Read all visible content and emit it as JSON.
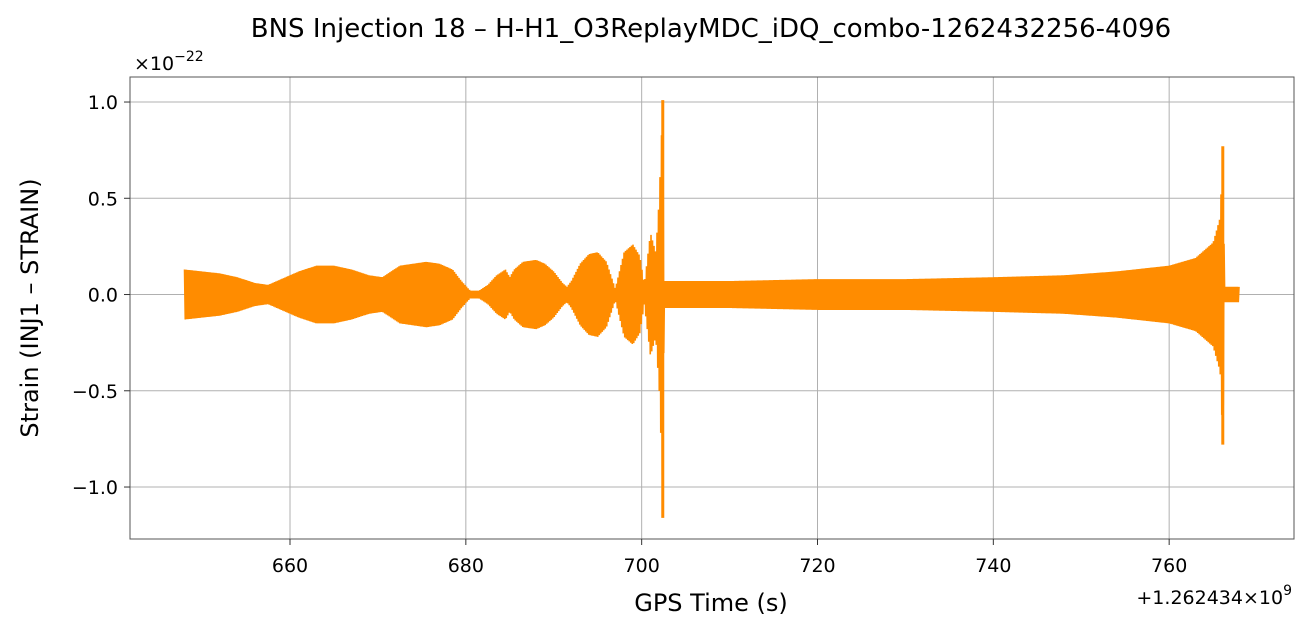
{
  "chart_data": {
    "type": "line",
    "title": "BNS Injection 18 – H-H1_O3ReplayMDC_iDQ_combo-1262432256-4096",
    "xlabel": "GPS Time (s)",
    "ylabel": "Strain (INJ1 – STRAIN)",
    "x_offset_label": "+1.262434×10",
    "x_offset_exponent": "9",
    "y_scale_label": "×10",
    "y_scale_exponent": "−22",
    "xlim": [
      641.8,
      774.2
    ],
    "ylim": [
      -1.27,
      1.13
    ],
    "x_ticks": [
      660,
      680,
      700,
      720,
      740,
      760
    ],
    "x_tick_labels": [
      "660",
      "680",
      "700",
      "720",
      "740",
      "760"
    ],
    "y_ticks": [
      -1.0,
      -0.5,
      0.0,
      0.5,
      1.0
    ],
    "y_tick_labels": [
      "−1.0",
      "−0.5",
      "0.0",
      "0.5",
      "1.0"
    ],
    "grid": true,
    "color": "#ff8c00",
    "series": [
      {
        "envelope": [
          [
            648.0,
            0.13
          ],
          [
            650.0,
            0.12
          ],
          [
            652.0,
            0.11
          ],
          [
            654.0,
            0.09
          ],
          [
            656.0,
            0.06
          ],
          [
            657.5,
            0.05
          ],
          [
            659.0,
            0.08
          ],
          [
            661.0,
            0.12
          ],
          [
            663.0,
            0.15
          ],
          [
            665.0,
            0.15
          ],
          [
            667.0,
            0.13
          ],
          [
            669.0,
            0.1
          ],
          [
            670.5,
            0.09
          ],
          [
            671.5,
            0.12
          ],
          [
            672.5,
            0.15
          ],
          [
            674.0,
            0.16
          ],
          [
            675.5,
            0.17
          ],
          [
            677.0,
            0.16
          ],
          [
            678.5,
            0.13
          ],
          [
            679.5,
            0.07
          ],
          [
            680.5,
            0.02
          ],
          [
            681.5,
            0.02
          ],
          [
            682.5,
            0.05
          ],
          [
            683.5,
            0.1
          ],
          [
            684.5,
            0.13
          ],
          [
            685.0,
            0.09
          ],
          [
            685.5,
            0.13
          ],
          [
            686.5,
            0.17
          ],
          [
            688.0,
            0.18
          ],
          [
            689.0,
            0.16
          ],
          [
            690.0,
            0.12
          ],
          [
            691.0,
            0.06
          ],
          [
            691.5,
            0.04
          ],
          [
            692.0,
            0.07
          ],
          [
            693.0,
            0.16
          ],
          [
            694.0,
            0.21
          ],
          [
            695.0,
            0.22
          ],
          [
            696.0,
            0.17
          ],
          [
            697.0,
            0.03
          ],
          [
            698.0,
            0.22
          ],
          [
            699.0,
            0.26
          ],
          [
            699.8,
            0.2
          ],
          [
            700.3,
            0.05
          ],
          [
            701.0,
            0.32
          ],
          [
            701.6,
            0.22
          ],
          [
            702.0,
            0.5
          ],
          [
            702.4,
            1.01
          ],
          [
            702.55,
            0.07
          ],
          [
            710.0,
            0.07
          ],
          [
            720.0,
            0.08
          ],
          [
            730.0,
            0.08
          ],
          [
            740.0,
            0.09
          ],
          [
            748.0,
            0.1
          ],
          [
            754.0,
            0.12
          ],
          [
            760.0,
            0.15
          ],
          [
            763.0,
            0.19
          ],
          [
            765.0,
            0.27
          ],
          [
            765.8,
            0.4
          ],
          [
            766.1,
            0.77
          ],
          [
            766.3,
            0.04
          ],
          [
            768.0,
            0.04
          ]
        ],
        "negative_spikes": [
          [
            702.4,
            -1.16
          ],
          [
            766.1,
            -0.78
          ]
        ]
      }
    ]
  }
}
